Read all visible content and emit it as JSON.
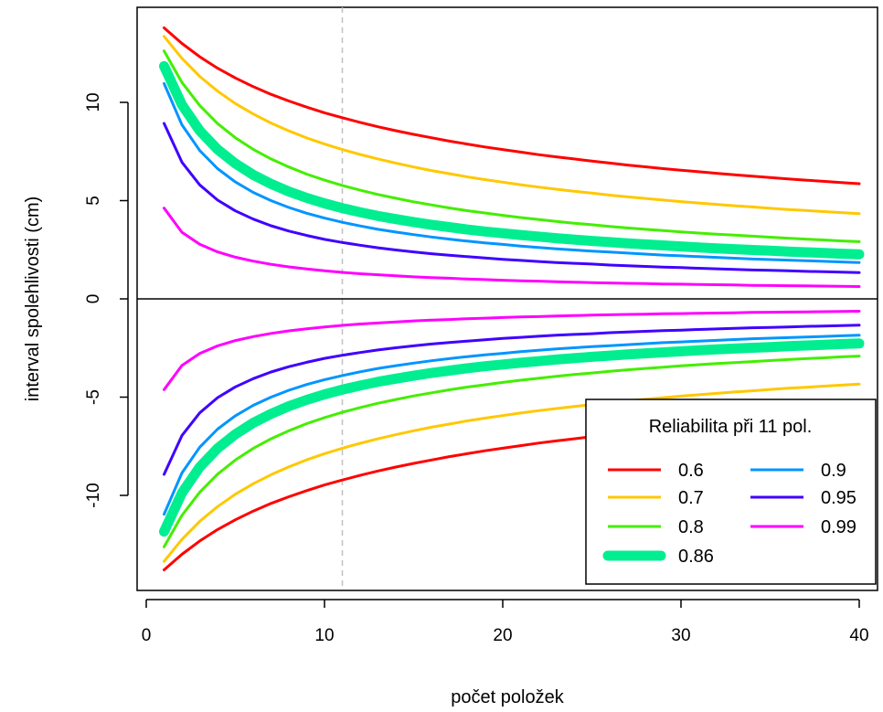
{
  "chart_data": {
    "type": "line",
    "xlabel": "počet položek",
    "ylabel": "interval spolehlivosti (cm)",
    "xlim": [
      1,
      40
    ],
    "ylim": [
      -14.8,
      14.8
    ],
    "x_ticks": [
      0,
      10,
      20,
      30,
      40
    ],
    "y_ticks": [
      -10,
      -5,
      0,
      5,
      10
    ],
    "reference_vline": 11,
    "reference_hline": 0,
    "legend": {
      "title": "Reliabilita při 11 pol.",
      "position": "bottom-right",
      "columns": 2
    },
    "x": [
      1,
      2,
      3,
      4,
      5,
      6,
      7,
      8,
      9,
      10,
      11,
      12,
      13,
      14,
      15,
      16,
      17,
      18,
      19,
      20,
      21,
      22,
      23,
      24,
      25,
      26,
      27,
      28,
      29,
      30,
      31,
      32,
      33,
      34,
      35,
      36,
      37,
      38,
      39,
      40
    ],
    "series": [
      {
        "name": "0.6",
        "color": "#ff0000",
        "width": 3,
        "values": [
          13.79,
          13.0,
          12.32,
          11.74,
          11.24,
          10.8,
          10.41,
          10.07,
          9.76,
          9.47,
          9.22,
          8.98,
          8.76,
          8.56,
          8.37,
          8.2,
          8.03,
          7.88,
          7.73,
          7.6,
          7.47,
          7.34,
          7.23,
          7.12,
          7.01,
          6.91,
          6.81,
          6.72,
          6.63,
          6.55,
          6.47,
          6.39,
          6.31,
          6.24,
          6.17,
          6.1,
          6.04,
          5.98,
          5.92,
          5.86
        ]
      },
      {
        "name": "0.7",
        "color": "#ffc800",
        "width": 3,
        "values": [
          13.36,
          12.24,
          11.32,
          10.57,
          9.94,
          9.41,
          8.95,
          8.55,
          8.19,
          7.88,
          7.6,
          7.35,
          7.12,
          6.91,
          6.71,
          6.53,
          6.37,
          6.21,
          6.07,
          5.94,
          5.81,
          5.69,
          5.58,
          5.48,
          5.38,
          5.28,
          5.19,
          5.11,
          5.03,
          4.95,
          4.88,
          4.81,
          4.74,
          4.68,
          4.61,
          4.55,
          4.5,
          4.44,
          4.39,
          4.34
        ]
      },
      {
        "name": "0.8",
        "color": "#44ee00",
        "width": 3,
        "values": [
          12.62,
          11.02,
          9.84,
          8.92,
          8.2,
          7.61,
          7.12,
          6.71,
          6.35,
          6.04,
          5.77,
          5.53,
          5.31,
          5.12,
          4.94,
          4.78,
          4.63,
          4.49,
          4.37,
          4.25,
          4.14,
          4.04,
          3.94,
          3.85,
          3.77,
          3.69,
          3.61,
          3.54,
          3.48,
          3.41,
          3.35,
          3.29,
          3.24,
          3.19,
          3.14,
          3.09,
          3.04,
          3.0,
          2.95,
          2.91
        ]
      },
      {
        "name": "0.86",
        "color": "#00ee90",
        "width": 11,
        "values": [
          11.84,
          9.88,
          8.56,
          7.61,
          6.89,
          6.31,
          5.85,
          5.46,
          5.14,
          4.86,
          4.62,
          4.41,
          4.22,
          4.06,
          3.91,
          3.77,
          3.65,
          3.53,
          3.43,
          3.34,
          3.25,
          3.17,
          3.09,
          3.02,
          2.95,
          2.89,
          2.83,
          2.77,
          2.72,
          2.67,
          2.62,
          2.57,
          2.53,
          2.49,
          2.45,
          2.41,
          2.37,
          2.34,
          2.3,
          2.27
        ]
      },
      {
        "name": "0.9",
        "color": "#0095ff",
        "width": 3,
        "values": [
          10.96,
          8.86,
          7.55,
          6.63,
          5.95,
          5.42,
          5.0,
          4.65,
          4.36,
          4.11,
          3.9,
          3.71,
          3.54,
          3.4,
          3.27,
          3.15,
          3.04,
          2.94,
          2.85,
          2.77,
          2.69,
          2.62,
          2.55,
          2.49,
          2.43,
          2.38,
          2.33,
          2.28,
          2.23,
          2.19,
          2.15,
          2.11,
          2.07,
          2.03,
          2.0,
          1.97,
          1.94,
          1.91,
          1.88,
          1.85
        ]
      },
      {
        "name": "0.95",
        "color": "#4000ff",
        "width": 3,
        "values": [
          8.93,
          6.96,
          5.8,
          5.03,
          4.48,
          4.06,
          3.72,
          3.45,
          3.23,
          3.03,
          2.87,
          2.73,
          2.6,
          2.49,
          2.39,
          2.3,
          2.22,
          2.15,
          2.08,
          2.01,
          1.96,
          1.9,
          1.85,
          1.81,
          1.77,
          1.72,
          1.69,
          1.65,
          1.62,
          1.59,
          1.56,
          1.53,
          1.5,
          1.47,
          1.45,
          1.43,
          1.4,
          1.38,
          1.36,
          1.34
        ]
      },
      {
        "name": "0.99",
        "color": "#ff00ff",
        "width": 3,
        "values": [
          4.62,
          3.39,
          2.78,
          2.39,
          2.12,
          1.92,
          1.76,
          1.63,
          1.52,
          1.43,
          1.35,
          1.28,
          1.23,
          1.17,
          1.12,
          1.08,
          1.05,
          1.01,
          0.98,
          0.95,
          0.92,
          0.9,
          0.87,
          0.85,
          0.83,
          0.81,
          0.79,
          0.78,
          0.76,
          0.75,
          0.73,
          0.72,
          0.71,
          0.69,
          0.68,
          0.67,
          0.66,
          0.65,
          0.64,
          0.63
        ]
      }
    ]
  }
}
